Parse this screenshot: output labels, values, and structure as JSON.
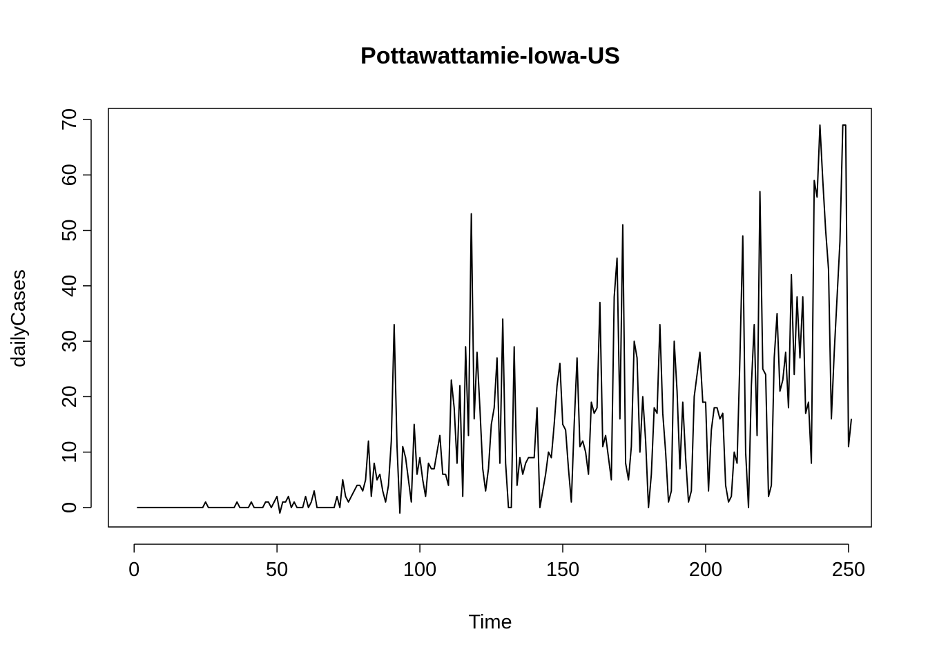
{
  "chart_data": {
    "type": "line",
    "title": "Pottawattamie-Iowa-US",
    "xlabel": "Time",
    "ylabel": "dailyCases",
    "xlim": [
      -9,
      258
    ],
    "ylim": [
      -3.5,
      72
    ],
    "xticks": [
      0,
      50,
      100,
      150,
      200,
      250
    ],
    "yticks": [
      0,
      10,
      20,
      30,
      40,
      50,
      60,
      70
    ],
    "grid": false,
    "legend": "none",
    "line_color": "#000000",
    "series": [
      {
        "values": [
          0,
          0,
          0,
          0,
          0,
          0,
          0,
          0,
          0,
          0,
          0,
          0,
          0,
          0,
          0,
          0,
          0,
          0,
          0,
          0,
          0,
          0,
          0,
          0,
          1,
          0,
          0,
          0,
          0,
          0,
          0,
          0,
          0,
          0,
          0,
          1,
          0,
          0,
          0,
          0,
          1,
          0,
          0,
          0,
          0,
          1,
          1,
          0,
          1,
          2,
          -1,
          1,
          1,
          2,
          0,
          1,
          0,
          0,
          0,
          2,
          0,
          1,
          3,
          0,
          0,
          0,
          0,
          0,
          0,
          0,
          2,
          0,
          5,
          2,
          1,
          2,
          3,
          4,
          4,
          3,
          5,
          12,
          2,
          8,
          5,
          6,
          3,
          1,
          4,
          12,
          33,
          11,
          -1,
          11,
          9,
          5,
          1,
          15,
          6,
          9,
          5,
          2,
          8,
          7,
          7,
          10,
          13,
          6,
          6,
          4,
          23,
          18,
          8,
          22,
          2,
          29,
          13,
          53,
          16,
          28,
          18,
          7,
          3,
          7,
          15,
          18,
          27,
          8,
          34,
          8,
          0,
          0,
          29,
          4,
          9,
          6,
          8,
          9,
          9,
          9,
          18,
          0,
          3,
          6,
          10,
          9,
          15,
          22,
          26,
          15,
          14,
          7,
          1,
          15,
          27,
          11,
          12,
          10,
          6,
          19,
          17,
          18,
          37,
          11,
          13,
          9,
          5,
          38,
          45,
          16,
          51,
          8,
          5,
          11,
          30,
          27,
          10,
          20,
          12,
          0,
          6,
          18,
          17,
          33,
          17,
          10,
          1,
          3,
          30,
          21,
          7,
          19,
          9,
          1,
          3,
          20,
          24,
          28,
          19,
          19,
          3,
          14,
          18,
          18,
          16,
          17,
          4,
          1,
          2,
          10,
          8,
          27,
          49,
          10,
          0,
          22,
          33,
          13,
          57,
          25,
          24,
          2,
          4,
          27,
          35,
          21,
          23,
          28,
          18,
          42,
          24,
          38,
          27,
          38,
          17,
          19,
          8,
          59,
          56,
          69,
          59,
          50,
          43,
          16,
          28,
          38,
          48,
          69,
          69,
          11,
          16
        ]
      }
    ]
  }
}
